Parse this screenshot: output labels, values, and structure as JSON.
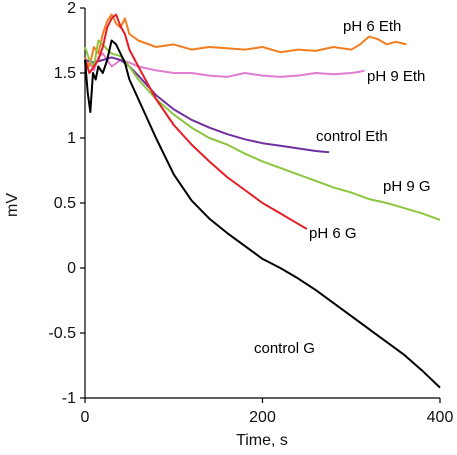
{
  "chart_data": {
    "type": "line",
    "xlabel": "Time, s",
    "ylabel": "mV",
    "xlim": [
      0,
      400
    ],
    "ylim": [
      -1,
      2
    ],
    "x_ticks": [
      0,
      200,
      400
    ],
    "y_ticks": [
      -1,
      -0.5,
      0,
      0.5,
      1,
      1.5,
      2
    ],
    "y_tick_labels": [
      "-1",
      "-0.5",
      "0",
      "0.5",
      "1",
      "1.5",
      "2"
    ],
    "x_tick_labels": [
      "0",
      "200",
      "400"
    ],
    "grid": false,
    "legend": "none",
    "series": [
      {
        "name": "pH 6 Eth",
        "color": "#f47d20",
        "x": [
          0,
          5,
          10,
          15,
          20,
          25,
          30,
          35,
          40,
          45,
          50,
          60,
          80,
          100,
          120,
          140,
          160,
          180,
          200,
          220,
          240,
          260,
          280,
          300,
          310,
          320,
          330,
          340,
          350,
          362
        ],
        "y": [
          1.62,
          1.55,
          1.7,
          1.65,
          1.8,
          1.9,
          1.95,
          1.88,
          1.85,
          1.92,
          1.8,
          1.75,
          1.7,
          1.72,
          1.68,
          1.7,
          1.69,
          1.68,
          1.7,
          1.66,
          1.68,
          1.67,
          1.7,
          1.68,
          1.72,
          1.78,
          1.76,
          1.72,
          1.74,
          1.72
        ]
      },
      {
        "name": "pH 9 Eth",
        "color": "#e07dd0",
        "x": [
          0,
          5,
          10,
          15,
          20,
          30,
          40,
          50,
          60,
          80,
          100,
          120,
          140,
          160,
          180,
          200,
          220,
          240,
          260,
          280,
          300,
          310,
          315
        ],
        "y": [
          1.58,
          1.6,
          1.52,
          1.62,
          1.65,
          1.55,
          1.6,
          1.58,
          1.55,
          1.52,
          1.5,
          1.5,
          1.48,
          1.47,
          1.5,
          1.48,
          1.47,
          1.48,
          1.5,
          1.49,
          1.5,
          1.51,
          1.52
        ]
      },
      {
        "name": "control Eth",
        "color": "#7030a0",
        "x": [
          0,
          10,
          20,
          30,
          40,
          50,
          60,
          80,
          100,
          120,
          140,
          160,
          180,
          200,
          220,
          240,
          260,
          275
        ],
        "y": [
          1.6,
          1.58,
          1.6,
          1.62,
          1.6,
          1.55,
          1.48,
          1.33,
          1.22,
          1.14,
          1.08,
          1.03,
          0.99,
          0.96,
          0.94,
          0.92,
          0.9,
          0.89
        ]
      },
      {
        "name": "pH 9 G",
        "color": "#8cc63f",
        "x": [
          0,
          5,
          10,
          15,
          20,
          25,
          30,
          40,
          50,
          60,
          80,
          100,
          120,
          140,
          160,
          180,
          200,
          220,
          240,
          260,
          280,
          300,
          320,
          340,
          360,
          380,
          400
        ],
        "y": [
          1.7,
          1.6,
          1.55,
          1.75,
          1.72,
          1.68,
          1.65,
          1.63,
          1.55,
          1.45,
          1.3,
          1.18,
          1.08,
          1.0,
          0.95,
          0.88,
          0.82,
          0.77,
          0.72,
          0.67,
          0.62,
          0.58,
          0.53,
          0.5,
          0.46,
          0.42,
          0.37
        ]
      },
      {
        "name": "pH 6 G",
        "color": "#e41e26",
        "x": [
          0,
          5,
          10,
          15,
          20,
          25,
          30,
          35,
          40,
          45,
          50,
          60,
          80,
          100,
          120,
          140,
          160,
          180,
          200,
          220,
          240,
          250
        ],
        "y": [
          1.6,
          1.5,
          1.55,
          1.6,
          1.7,
          1.85,
          1.92,
          1.95,
          1.86,
          1.8,
          1.68,
          1.55,
          1.3,
          1.1,
          0.95,
          0.82,
          0.7,
          0.6,
          0.5,
          0.42,
          0.34,
          0.3
        ]
      },
      {
        "name": "control  G",
        "color": "#000000",
        "x": [
          0,
          3,
          6,
          9,
          12,
          15,
          20,
          25,
          30,
          35,
          40,
          45,
          50,
          60,
          80,
          100,
          120,
          140,
          160,
          180,
          200,
          220,
          240,
          260,
          280,
          300,
          320,
          340,
          360,
          380,
          400
        ],
        "y": [
          1.6,
          1.35,
          1.2,
          1.5,
          1.45,
          1.55,
          1.5,
          1.6,
          1.75,
          1.72,
          1.65,
          1.58,
          1.45,
          1.3,
          1.0,
          0.72,
          0.52,
          0.38,
          0.27,
          0.17,
          0.07,
          0.0,
          -0.08,
          -0.17,
          -0.27,
          -0.37,
          -0.47,
          -0.57,
          -0.67,
          -0.79,
          -0.92
        ]
      }
    ]
  }
}
